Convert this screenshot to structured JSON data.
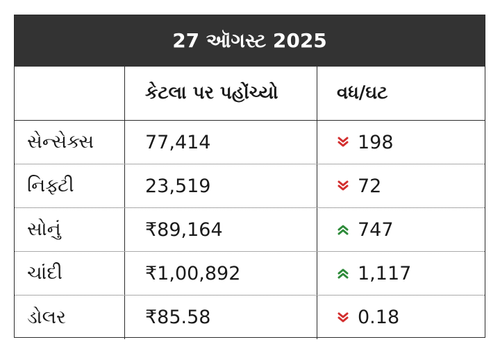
{
  "title": "27 ઑગસ્ટ 2025",
  "colors": {
    "header_bg": "#333333",
    "up": "#2e8b3a",
    "down": "#d32f2f"
  },
  "headers": {
    "name": "",
    "level": "કેટલા પર પહોંચ્યો",
    "change": "વધ/ઘટ"
  },
  "rows": [
    {
      "name": "સેન્સેક્સ",
      "level": "77,414",
      "direction": "down",
      "direction_icon": "double-chevron-down-icon",
      "change": "198"
    },
    {
      "name": "નિફ્ટી",
      "level": "23,519",
      "direction": "down",
      "direction_icon": "double-chevron-down-icon",
      "change": "72"
    },
    {
      "name": "સોનું",
      "level": "₹89,164",
      "direction": "up",
      "direction_icon": "double-chevron-up-icon",
      "change": "747"
    },
    {
      "name": "ચાંદી",
      "level": "₹1,00,892",
      "direction": "up",
      "direction_icon": "double-chevron-up-icon",
      "change": "1,117"
    },
    {
      "name": "ડોલર",
      "level": "₹85.58",
      "direction": "down",
      "direction_icon": "double-chevron-down-icon",
      "change": "0.18"
    }
  ]
}
